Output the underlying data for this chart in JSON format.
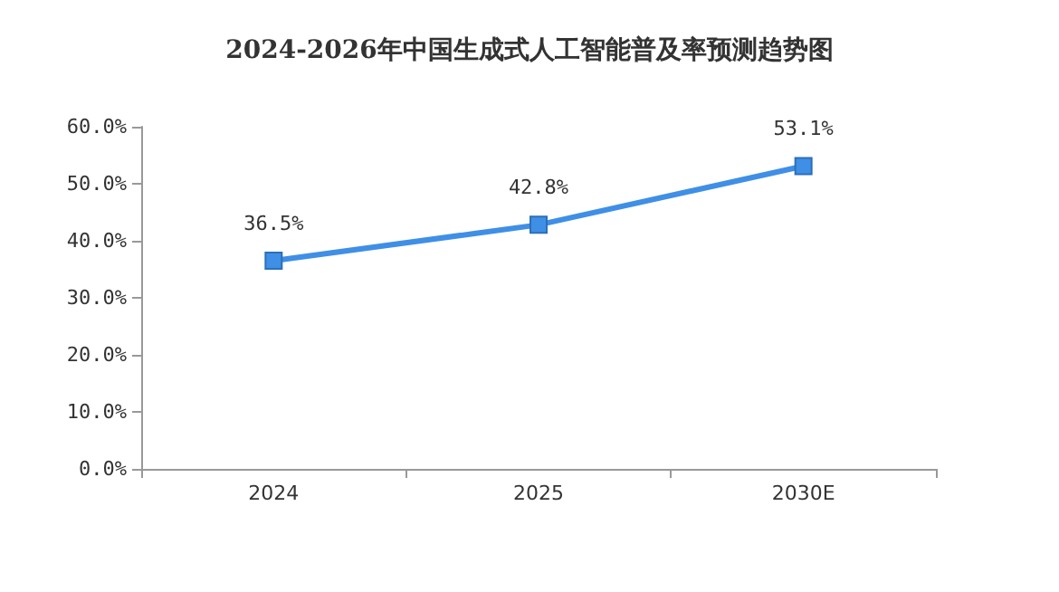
{
  "chart_data": {
    "type": "line",
    "title": "2024-2026年中国生成式人工智能普及率预测趋势图",
    "categories": [
      "2024",
      "2025",
      "2030E"
    ],
    "values": [
      36.5,
      42.8,
      53.1
    ],
    "value_labels": [
      "36.5%",
      "42.8%",
      "53.1%"
    ],
    "color": "#3f8fe6",
    "marker": "square",
    "ylim": [
      0,
      60
    ],
    "yticks": [
      {
        "value": 0,
        "label": "0.0%"
      },
      {
        "value": 10,
        "label": "10.0%"
      },
      {
        "value": 20,
        "label": "20.0%"
      },
      {
        "value": 30,
        "label": "30.0%"
      },
      {
        "value": 40,
        "label": "40.0%"
      },
      {
        "value": 50,
        "label": "50.0%"
      },
      {
        "value": 60,
        "label": "60.0%"
      }
    ]
  }
}
